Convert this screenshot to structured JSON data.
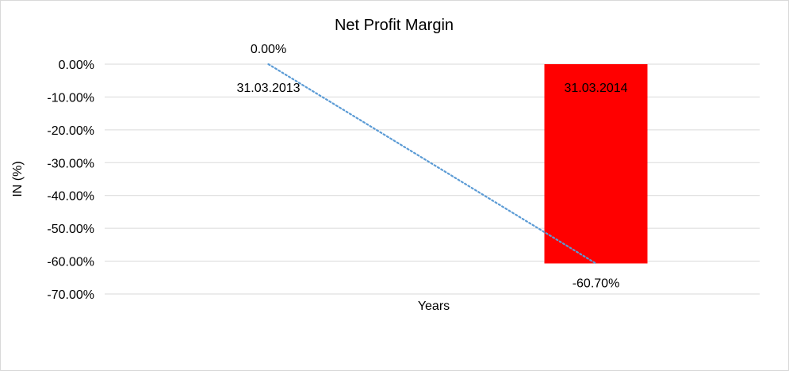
{
  "chart_data": {
    "type": "bar",
    "title": "Net Profit Margin",
    "xlabel": "Years",
    "ylabel": "IN (%)",
    "ylim": [
      -70,
      0
    ],
    "yticks": [
      0,
      -10,
      -20,
      -30,
      -40,
      -50,
      -60,
      -70
    ],
    "ytick_labels": [
      "0.00%",
      "-10.00%",
      "-20.00%",
      "-30.00%",
      "-40.00%",
      "-50.00%",
      "-60.00%",
      "-70.00%"
    ],
    "categories": [
      "31.03.2013",
      "31.03.2014"
    ],
    "values": [
      0,
      -60.7
    ],
    "value_labels": [
      "0.00%",
      "-60.70%"
    ],
    "grid": true,
    "legend": "none",
    "trendline": "linear, dotted",
    "colors": {
      "bar": "#ff0000",
      "trendline": "#5b9bd5",
      "grid": "#d9d9d9"
    }
  }
}
